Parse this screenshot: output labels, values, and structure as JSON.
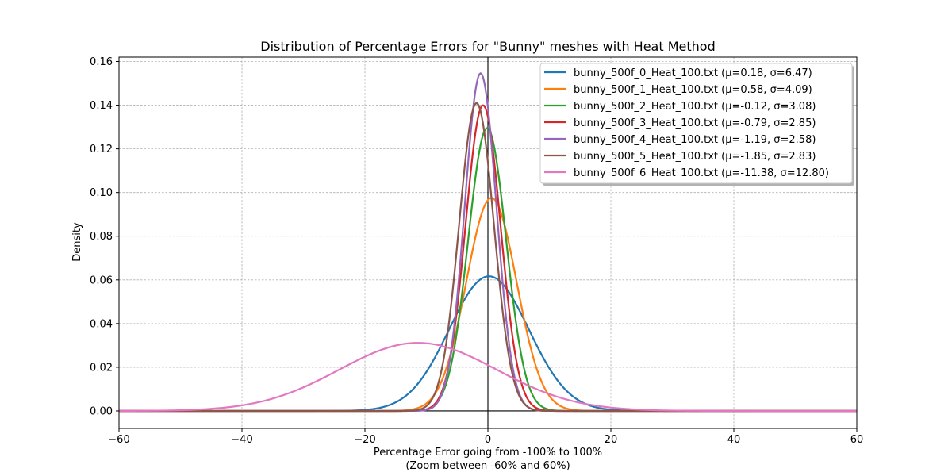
{
  "chart_data": {
    "type": "line",
    "title": "Distribution of Percentage Errors for \"Bunny\" meshes with Heat Method",
    "xlabel_line1": "Percentage Error going from -100% to 100%",
    "xlabel_line2": "(Zoom between -60% and 60%)",
    "ylabel": "Density",
    "xlim": [
      -60,
      60
    ],
    "ylim": [
      -0.008,
      0.162
    ],
    "xticks": [
      -60,
      -40,
      -20,
      0,
      20,
      40,
      60
    ],
    "xtick_labels": [
      "−60",
      "−40",
      "−20",
      "0",
      "20",
      "40",
      "60"
    ],
    "yticks": [
      0.0,
      0.02,
      0.04,
      0.06,
      0.08,
      0.1,
      0.12,
      0.14,
      0.16
    ],
    "ytick_labels": [
      "0.00",
      "0.02",
      "0.04",
      "0.06",
      "0.08",
      "0.10",
      "0.12",
      "0.14",
      "0.16"
    ],
    "grid": true,
    "legend_position": "top-right",
    "series": [
      {
        "name": "bunny_500f_0_Heat_100.txt (μ=0.18, σ=6.47)",
        "mu": 0.18,
        "sigma": 6.47,
        "color": "#1f77b4"
      },
      {
        "name": "bunny_500f_1_Heat_100.txt (μ=0.58, σ=4.09)",
        "mu": 0.58,
        "sigma": 4.09,
        "color": "#ff7f0e"
      },
      {
        "name": "bunny_500f_2_Heat_100.txt (μ=-0.12, σ=3.08)",
        "mu": -0.12,
        "sigma": 3.08,
        "color": "#2ca02c"
      },
      {
        "name": "bunny_500f_3_Heat_100.txt (μ=-0.79, σ=2.85)",
        "mu": -0.79,
        "sigma": 2.85,
        "color": "#d62728"
      },
      {
        "name": "bunny_500f_4_Heat_100.txt (μ=-1.19, σ=2.58)",
        "mu": -1.19,
        "sigma": 2.58,
        "color": "#9467bd"
      },
      {
        "name": "bunny_500f_5_Heat_100.txt (μ=-1.85, σ=2.83)",
        "mu": -1.85,
        "sigma": 2.83,
        "color": "#8c564b"
      },
      {
        "name": "bunny_500f_6_Heat_100.txt (μ=-11.38, σ=12.80)",
        "mu": -11.38,
        "sigma": 12.8,
        "color": "#e377c2"
      }
    ]
  }
}
